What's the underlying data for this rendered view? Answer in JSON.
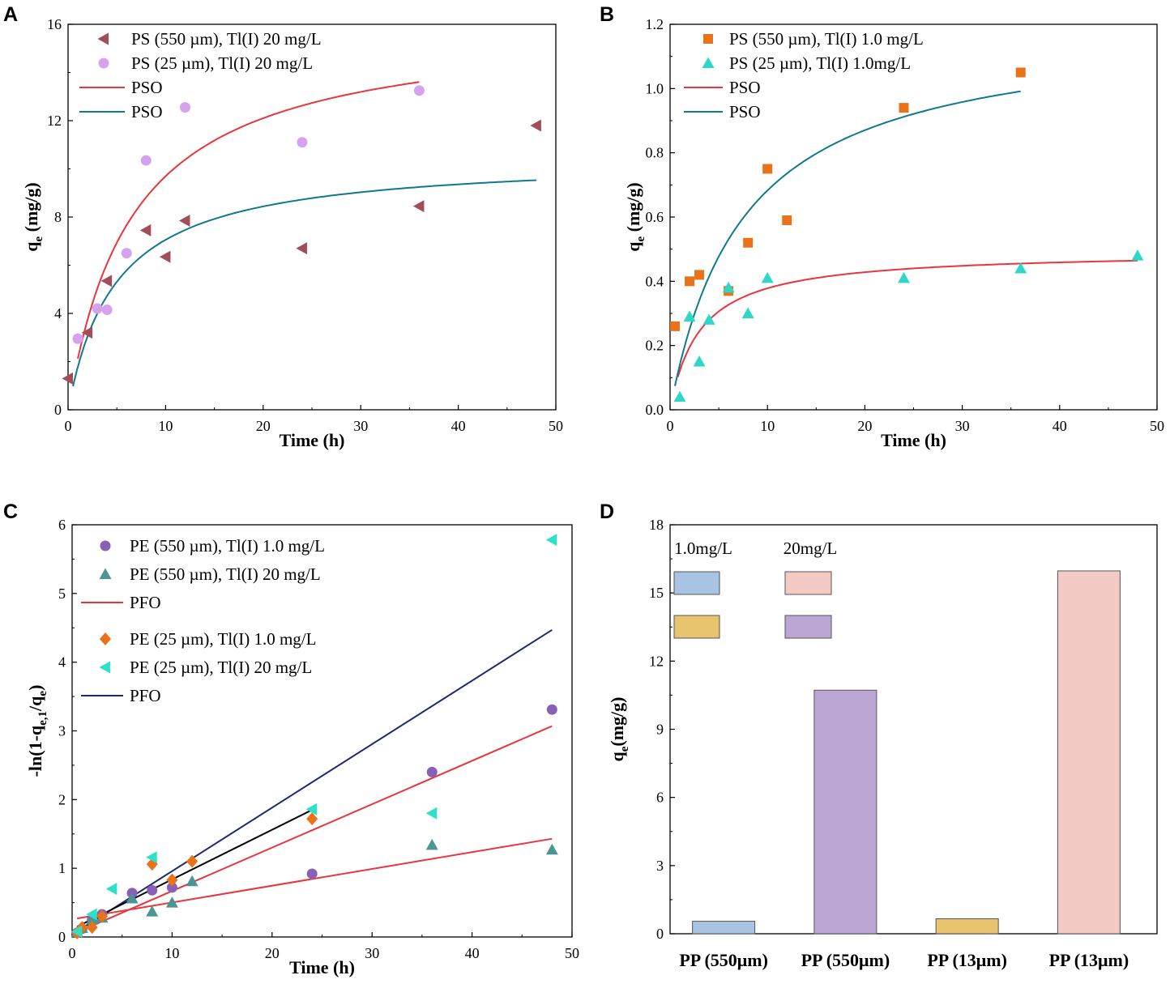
{
  "chart_data": [
    {
      "id": "A",
      "type": "scatter",
      "panel_label": "A",
      "xlabel": "Time (h)",
      "ylabel_main": "q",
      "ylabel_sub": "e",
      "ylabel_unit": " (mg/g)",
      "xlim": [
        0,
        50
      ],
      "ylim": [
        0,
        16
      ],
      "xticks": [
        "0",
        "10",
        "20",
        "30",
        "40",
        "50"
      ],
      "yticks": [
        "0",
        "4",
        "8",
        "12",
        "16"
      ],
      "series": [
        {
          "name": "PS (550 µm), Tl(I) 20 mg/L",
          "marker": "triangle-left",
          "color": "#a14e5a",
          "x": [
            0,
            2,
            4,
            8,
            10,
            12,
            24,
            36,
            48
          ],
          "y": [
            1.3,
            3.2,
            5.35,
            7.45,
            6.35,
            7.85,
            6.7,
            8.45,
            11.8
          ]
        },
        {
          "name": "PS (25 µm), Tl(I) 20 mg/L",
          "marker": "circle",
          "color": "#d6a2ee",
          "x": [
            1,
            3,
            4,
            6,
            8,
            12,
            24,
            36
          ],
          "y": [
            2.95,
            4.2,
            4.15,
            6.5,
            10.35,
            12.55,
            11.1,
            13.25
          ]
        },
        {
          "name": "PSO",
          "line": true,
          "color": "#e8363c",
          "qe": 16.1,
          "k": 0.0094,
          "xrange": [
            1,
            36
          ]
        },
        {
          "name": "PSO",
          "line": true,
          "color": "#11788f",
          "qe": 10.5,
          "k": 0.0195,
          "xrange": [
            0.5,
            48
          ]
        }
      ]
    },
    {
      "id": "B",
      "type": "scatter",
      "panel_label": "B",
      "xlabel": "Time (h)",
      "ylabel_main": "q",
      "ylabel_sub": "e",
      "ylabel_unit": " (mg/g)",
      "xlim": [
        0,
        50
      ],
      "ylim": [
        0,
        1.2
      ],
      "xticks": [
        "0",
        "10",
        "20",
        "30",
        "40",
        "50"
      ],
      "yticks": [
        "0.0",
        "0.2",
        "0.4",
        "0.6",
        "0.8",
        "1.0",
        "1.2"
      ],
      "series": [
        {
          "name": "PS (550 µm), Tl(I) 1.0 mg/L",
          "marker": "square",
          "color": "#ea7219",
          "x": [
            0.5,
            2,
            3,
            6,
            8,
            10,
            12,
            24,
            36
          ],
          "y": [
            0.26,
            0.4,
            0.42,
            0.37,
            0.52,
            0.75,
            0.59,
            0.94,
            1.05
          ]
        },
        {
          "name": "PS (25 µm), Tl(I) 1.0mg/L",
          "marker": "triangle-up",
          "color": "#2fd7c8",
          "x": [
            1,
            2,
            3,
            4,
            6,
            8,
            10,
            24,
            36,
            48
          ],
          "y": [
            0.04,
            0.29,
            0.15,
            0.28,
            0.38,
            0.3,
            0.41,
            0.41,
            0.44,
            0.48
          ]
        },
        {
          "name": "PSO",
          "line": true,
          "color": "#e8363c",
          "qe": 0.494,
          "k": 0.66,
          "xrange": [
            0.8,
            48
          ]
        },
        {
          "name": "PSO",
          "line": true,
          "color": "#11788f",
          "qe": 1.2,
          "k": 0.11,
          "xrange": [
            0.5,
            36
          ]
        }
      ]
    },
    {
      "id": "C",
      "type": "scatter",
      "panel_label": "C",
      "xlabel": "Time (h)",
      "ylabel_text": "-ln(1-q",
      "ylabel_sub1": "e,1",
      "ylabel_mid": "/q",
      "ylabel_sub2": "e",
      "ylabel_end": ")",
      "xlim": [
        0,
        50
      ],
      "ylim": [
        0,
        6
      ],
      "xticks": [
        "0",
        "10",
        "20",
        "30",
        "40",
        "50"
      ],
      "yticks": [
        "0",
        "1",
        "2",
        "3",
        "4",
        "5",
        "6"
      ],
      "series": [
        {
          "name": "PE (550 µm), Tl(I) 1.0 mg/L",
          "marker": "circle",
          "color": "#8a5fb8",
          "x": [
            0.5,
            1,
            2,
            3,
            6,
            8,
            10,
            24,
            36,
            48
          ],
          "y": [
            0.06,
            0.12,
            0.25,
            0.33,
            0.64,
            0.68,
            0.72,
            0.92,
            2.4,
            3.31
          ]
        },
        {
          "name": "PE (550 µm), Tl(I) 20 mg/L",
          "marker": "triangle-up",
          "color": "#4a9694",
          "x": [
            0.5,
            1,
            2,
            3,
            6,
            8,
            10,
            12,
            36,
            48
          ],
          "y": [
            0.07,
            0.13,
            0.25,
            0.28,
            0.56,
            0.37,
            0.5,
            0.81,
            1.34,
            1.27
          ]
        },
        {
          "name": "PFO",
          "line": true,
          "color": "#e8363c",
          "segments": [
            {
              "x": [
                1,
                48
              ],
              "y": [
                0.1,
                3.07
              ]
            },
            {
              "x": [
                0.5,
                48
              ],
              "y": [
                0.27,
                1.43
              ]
            }
          ]
        },
        {
          "name": "PE (25 µm), Tl(I) 1.0 mg/L",
          "marker": "diamond",
          "color": "#ea7219",
          "x": [
            0.5,
            1,
            2,
            3,
            8,
            10,
            12,
            24
          ],
          "y": [
            0.06,
            0.14,
            0.14,
            0.3,
            1.06,
            0.83,
            1.1,
            1.72
          ]
        },
        {
          "name": "PE (25 µm), Tl(I) 20 mg/L",
          "marker": "triangle-left",
          "color": "#2de1c8",
          "x": [
            0.5,
            2,
            4,
            8,
            24,
            36,
            48
          ],
          "y": [
            0.08,
            0.33,
            0.7,
            1.16,
            1.86,
            1.8,
            5.78
          ]
        },
        {
          "name": "PFO",
          "line": true,
          "color": "#1f2a6e",
          "segments": [
            {
              "x": [
                0.5,
                48
              ],
              "y": [
                0.08,
                4.47
              ]
            }
          ]
        },
        {
          "name": "",
          "line": true,
          "color": "#000000",
          "nolegend": true,
          "segments": [
            {
              "x": [
                0.5,
                24
              ],
              "y": [
                0.15,
                1.85
              ]
            }
          ]
        }
      ]
    },
    {
      "id": "D",
      "type": "bar",
      "panel_label": "D",
      "ylabel_main": "q",
      "ylabel_sub": "e",
      "ylabel_unit": "(mg/g)",
      "ylim": [
        0,
        18
      ],
      "yticks": [
        "0",
        "3",
        "6",
        "9",
        "12",
        "15",
        "18"
      ],
      "categories": [
        "PP (550μm)",
        "PP (550μm)",
        "PP (13μm)",
        "PP (13μm)"
      ],
      "values": [
        0.55,
        10.72,
        0.66,
        15.97
      ],
      "bar_colors": [
        "#a9c3e2",
        "#bba6d4",
        "#e8c46e",
        "#f4cbc4"
      ],
      "legend_headers": [
        "1.0mg/L",
        "20mg/L"
      ],
      "legend_swatches": [
        [
          "#a9c3e2",
          "#f4cbc4"
        ],
        [
          "#e8c46e",
          "#bba6d4"
        ]
      ]
    }
  ]
}
